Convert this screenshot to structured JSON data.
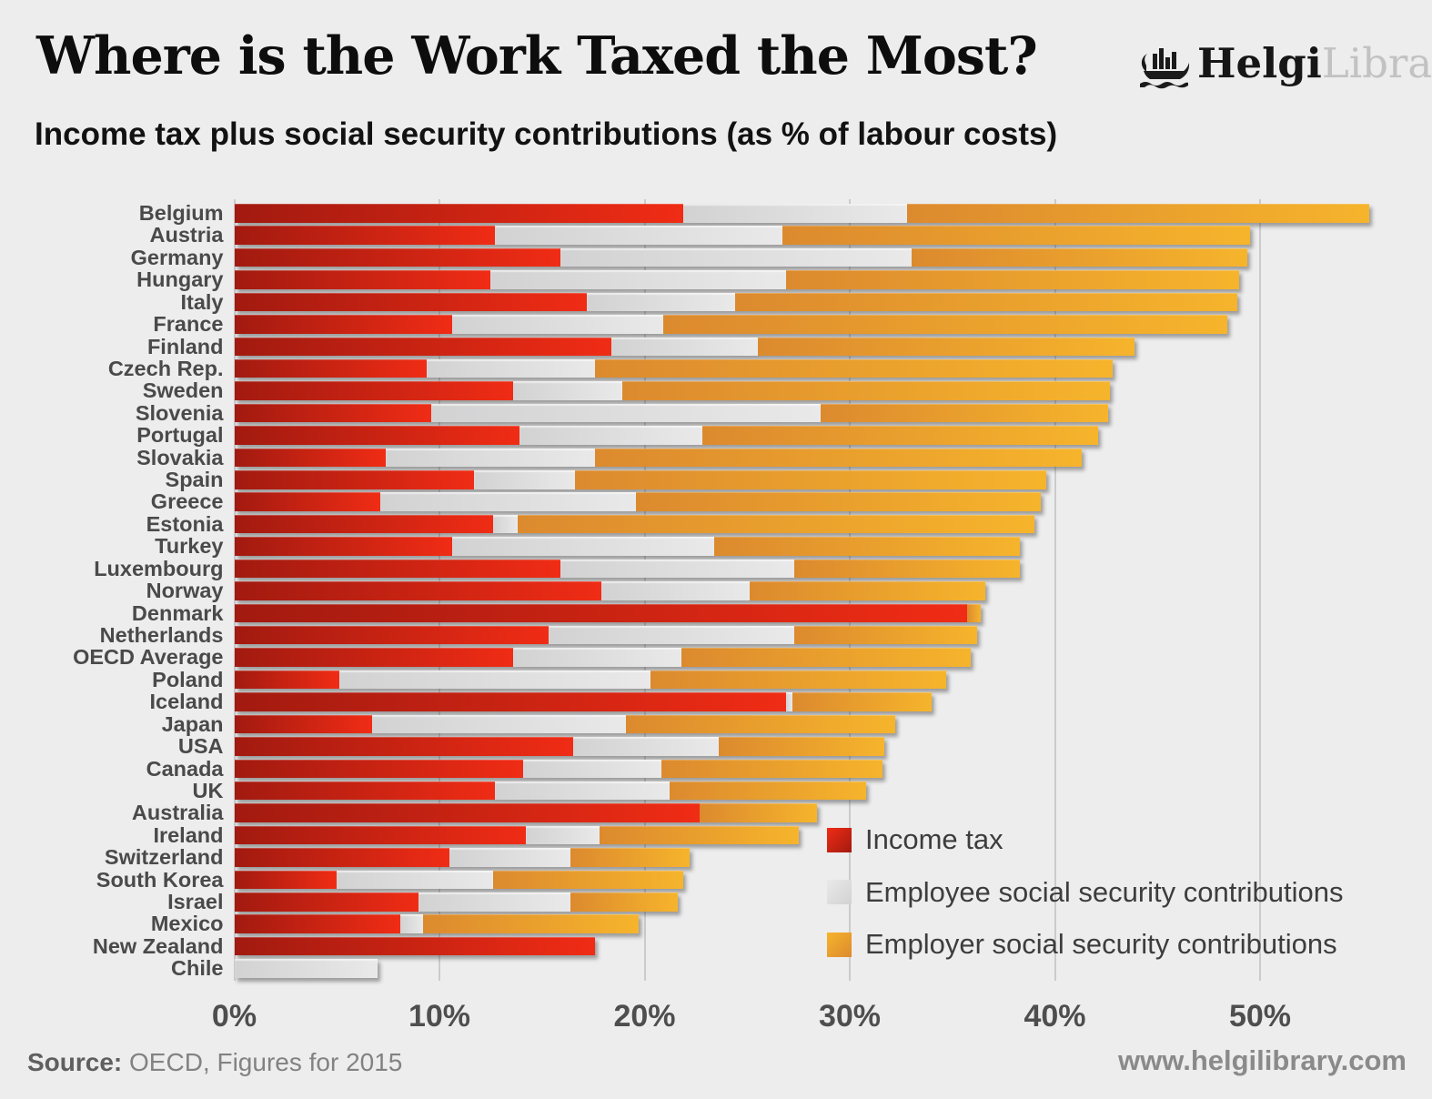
{
  "header": {
    "title": "Where is the Work Taxed the Most?",
    "subtitle": "Income tax plus social security contributions (as % of labour costs)",
    "brand_primary": "Helgi",
    "brand_secondary": "Library."
  },
  "footer": {
    "source_label": "Source:",
    "source_text": " OECD, Figures for 2015",
    "website": "www.helgilibrary.com"
  },
  "colors": {
    "background": "#ededee",
    "gridline": "#cbcbcc",
    "label_text": "#4a4a4a",
    "income_tax_from": "#a21a10",
    "income_tax_to": "#f02c15",
    "employee_ssc_from": "#d2d2d3",
    "employee_ssc_to": "#e9e9ea",
    "employer_ssc_from": "#dc8a2e",
    "employer_ssc_to": "#f6b42c"
  },
  "chart_data": {
    "type": "bar",
    "orientation": "horizontal",
    "stacked": true,
    "title": "Where is the Work Taxed the Most?",
    "subtitle": "Income tax plus social security contributions (as % of labour costs)",
    "unit": "% of labour costs",
    "xlim": [
      0,
      55.3
    ],
    "x_tick_values": [
      0,
      10,
      20,
      30,
      40,
      50
    ],
    "x_tick_labels": [
      "0%",
      "10%",
      "20%",
      "30%",
      "40%",
      "50%"
    ],
    "grid": true,
    "legend_position": "bottom-right-inside",
    "categories": [
      "Belgium",
      "Austria",
      "Germany",
      "Hungary",
      "Italy",
      "France",
      "Finland",
      "Czech Rep.",
      "Sweden",
      "Slovenia",
      "Portugal",
      "Slovakia",
      "Spain",
      "Greece",
      "Estonia",
      "Turkey",
      "Luxembourg",
      "Norway",
      "Denmark",
      "Netherlands",
      "OECD Average",
      "Poland",
      "Iceland",
      "Japan",
      "USA",
      "Canada",
      "UK",
      "Australia",
      "Ireland",
      "Switzerland",
      "South Korea",
      "Israel",
      "Mexico",
      "New Zealand",
      "Chile"
    ],
    "totals": [
      55.3,
      49.5,
      49.4,
      49.0,
      48.9,
      48.4,
      43.9,
      42.8,
      42.7,
      42.6,
      42.1,
      41.3,
      39.6,
      39.3,
      39.0,
      38.3,
      38.3,
      36.6,
      36.4,
      36.2,
      35.9,
      34.7,
      34.0,
      32.2,
      31.7,
      31.6,
      30.8,
      28.4,
      27.5,
      22.2,
      21.9,
      21.6,
      19.7,
      17.6,
      7.0
    ],
    "series": [
      {
        "name": "Income tax",
        "key": "income_tax",
        "color_from": "#a21a10",
        "color_to": "#f02c15",
        "values": [
          21.9,
          12.7,
          15.9,
          12.5,
          17.2,
          10.6,
          18.4,
          9.4,
          13.6,
          9.6,
          13.9,
          7.4,
          11.7,
          7.1,
          12.6,
          10.6,
          15.9,
          17.9,
          35.7,
          15.3,
          13.6,
          5.1,
          26.9,
          6.7,
          16.5,
          14.1,
          12.7,
          22.7,
          14.2,
          10.5,
          5.0,
          9.0,
          8.1,
          17.6,
          0.0
        ]
      },
      {
        "name": "Employee social security contributions",
        "key": "employee_ssc",
        "color_from": "#d2d2d3",
        "color_to": "#e9e9ea",
        "values": [
          10.9,
          14.0,
          17.1,
          14.4,
          7.2,
          10.3,
          7.1,
          8.2,
          5.3,
          19.0,
          8.9,
          10.2,
          4.9,
          12.5,
          1.2,
          12.8,
          11.4,
          7.2,
          0.0,
          12.0,
          8.2,
          15.2,
          0.3,
          12.4,
          7.1,
          6.7,
          8.5,
          0.0,
          3.6,
          5.9,
          7.6,
          7.4,
          1.1,
          0.0,
          7.0
        ]
      },
      {
        "name": "Employer social security contributions",
        "key": "employer_ssc",
        "color_from": "#dc8a2e",
        "color_to": "#f6b42c",
        "values": [
          22.5,
          22.8,
          16.4,
          22.1,
          24.5,
          27.5,
          18.4,
          25.2,
          23.8,
          14.0,
          19.3,
          23.7,
          23.0,
          19.7,
          25.2,
          14.9,
          11.0,
          11.5,
          0.7,
          8.9,
          14.1,
          14.4,
          6.8,
          13.1,
          8.1,
          10.8,
          9.6,
          5.7,
          9.7,
          5.8,
          9.3,
          5.2,
          10.5,
          0.0,
          0.0
        ]
      }
    ]
  }
}
